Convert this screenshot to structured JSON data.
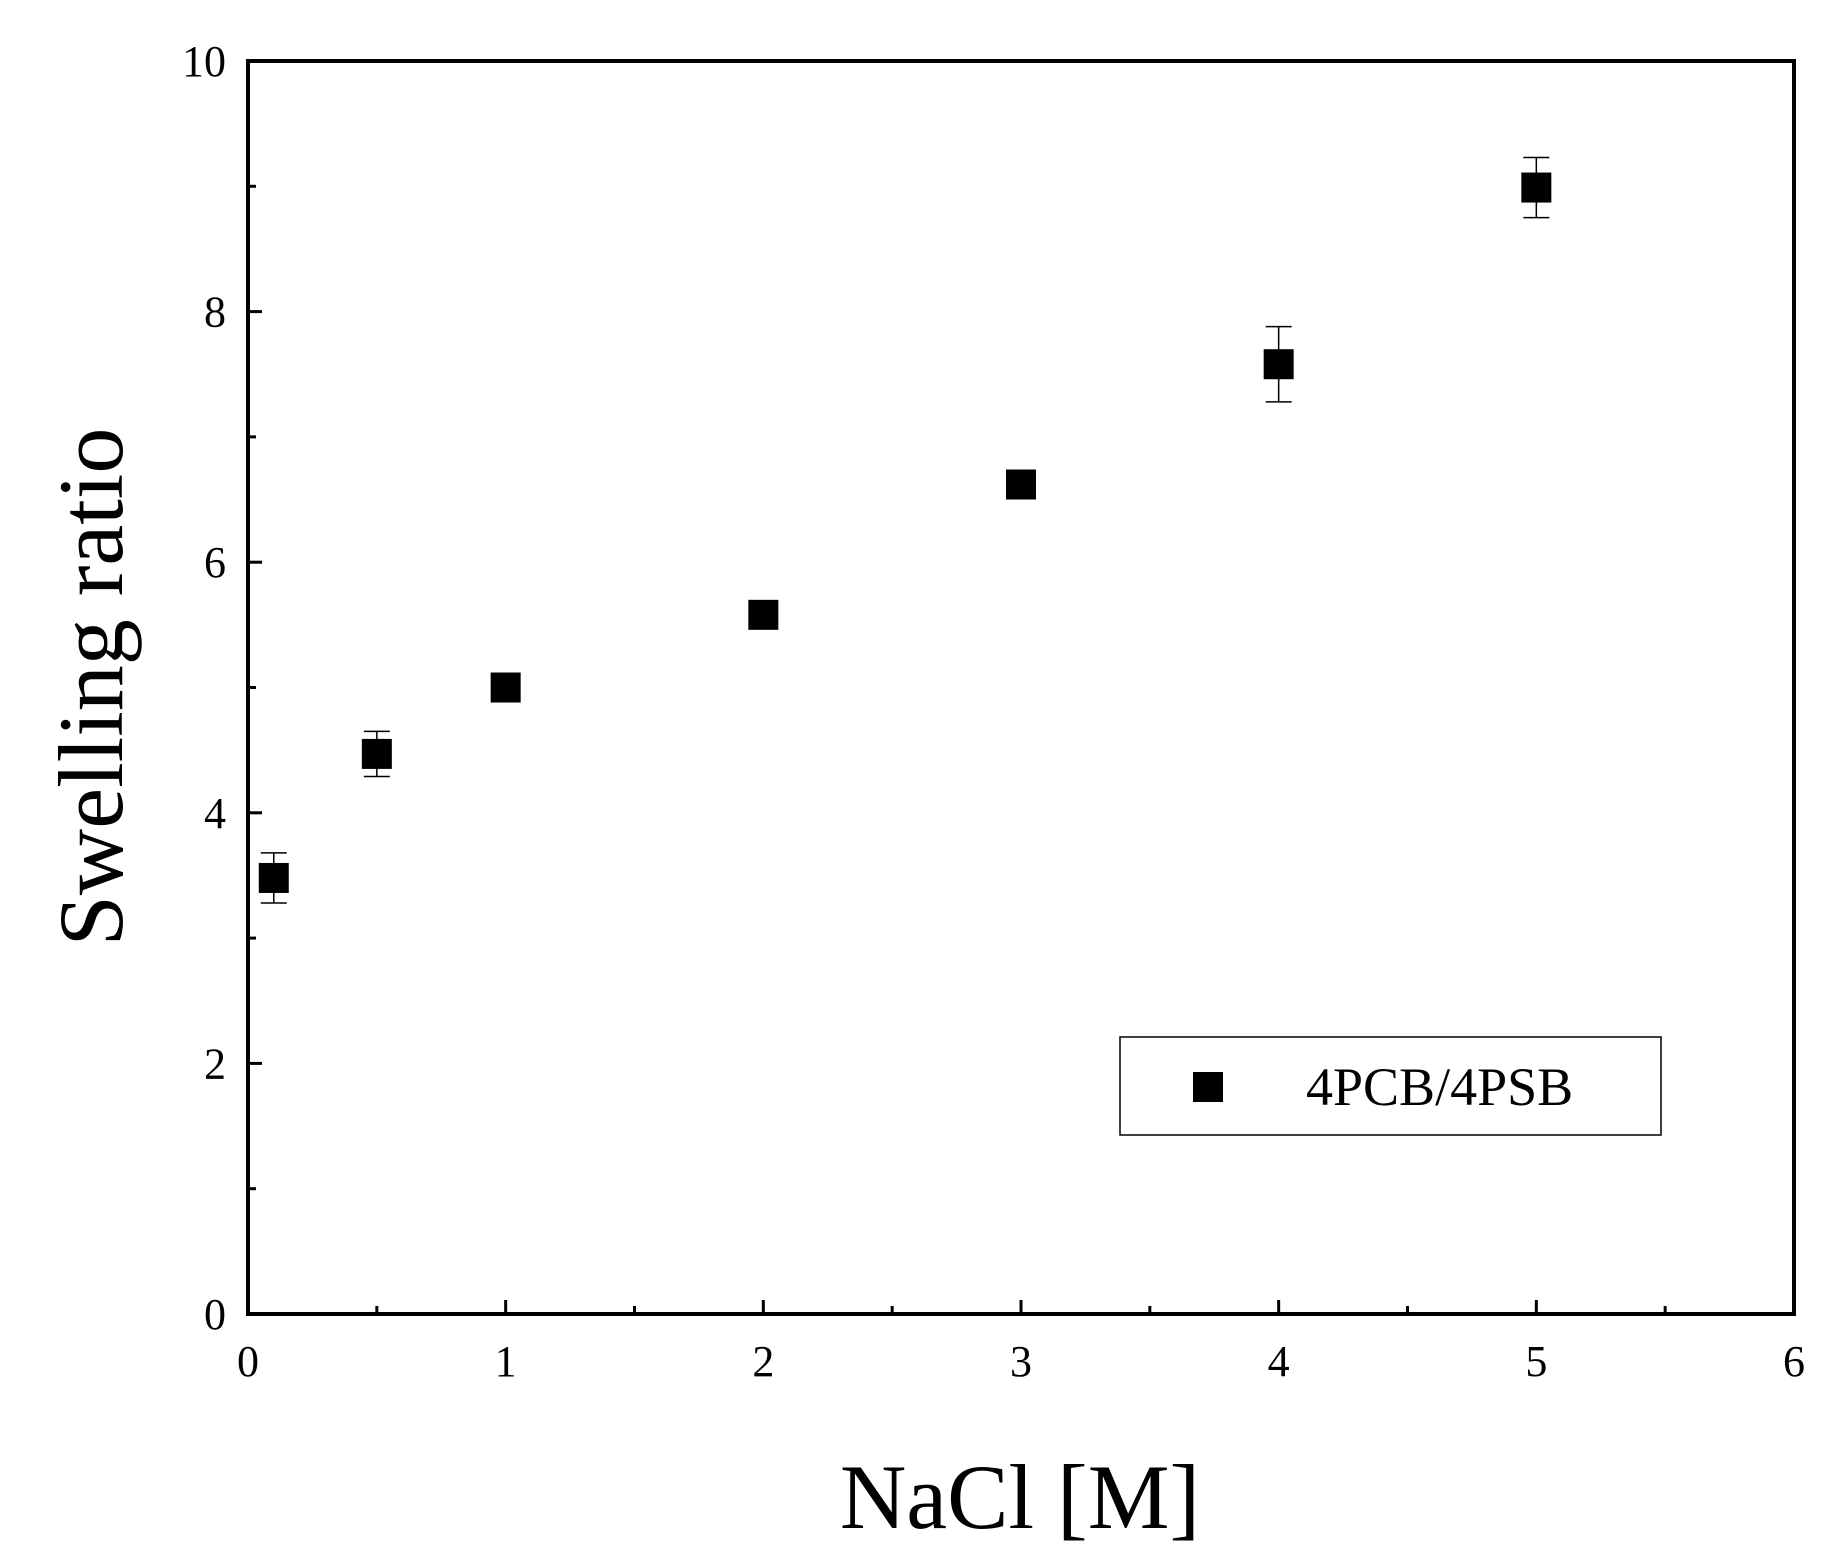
{
  "chart_data": {
    "type": "scatter",
    "title": "",
    "xlabel": "NaCl [M]",
    "ylabel": "Swelling ratio",
    "xlim": [
      0,
      6
    ],
    "ylim": [
      0,
      10
    ],
    "x_ticks": [
      0,
      1,
      2,
      3,
      4,
      5,
      6
    ],
    "y_ticks": [
      0,
      2,
      4,
      6,
      8,
      10
    ],
    "x_minor_ticks": [
      0.5,
      1.5,
      2.5,
      3.5,
      4.5,
      5.5
    ],
    "y_minor_ticks": [
      1,
      3,
      5,
      7,
      9
    ],
    "grid": false,
    "legend_position": "bottom-right",
    "series": [
      {
        "name": "4PCB/4PSB",
        "marker": "square",
        "color": "#000000",
        "x": [
          0.1,
          0.5,
          1,
          2,
          3,
          4,
          5
        ],
        "y": [
          3.48,
          4.47,
          5.0,
          5.58,
          6.62,
          7.58,
          8.99
        ],
        "err": [
          0.2,
          0.18,
          0.05,
          0.05,
          0.05,
          0.3,
          0.24
        ]
      }
    ]
  }
}
